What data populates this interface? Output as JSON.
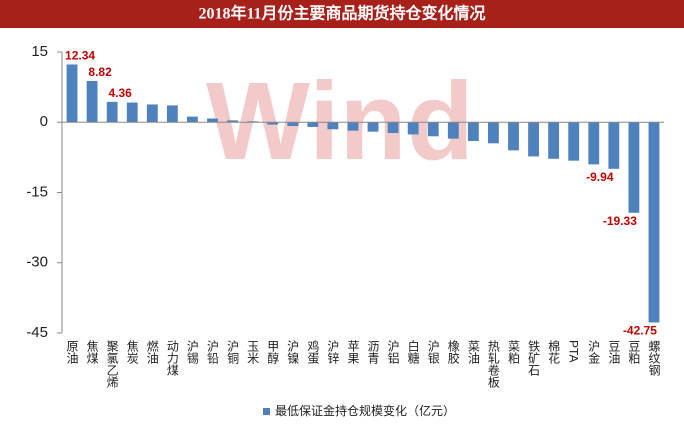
{
  "chart_data": {
    "type": "bar",
    "title": "2018年11月份主要商品期货持仓变化情况",
    "watermark": "Wind",
    "categories": [
      "原油",
      "焦煤",
      "聚氯乙烯",
      "焦炭",
      "燃油",
      "动力煤",
      "沪锡",
      "沪铅",
      "沪铜",
      "玉米",
      "甲醇",
      "沪镍",
      "鸡蛋",
      "沪锌",
      "苹果",
      "沥青",
      "沪铝",
      "白糖",
      "沪银",
      "橡胶",
      "菜油",
      "热轧卷板",
      "菜粕",
      "铁矿石",
      "棉花",
      "PTA",
      "沪金",
      "豆油",
      "豆粕",
      "螺纹钢"
    ],
    "series": [
      {
        "name": "最低保证金持仓规模变化（亿元）",
        "color": "#4f81bd",
        "values": [
          12.34,
          8.82,
          4.36,
          4.2,
          3.8,
          3.6,
          1.2,
          0.8,
          0.4,
          0.2,
          -0.5,
          -0.8,
          -1.0,
          -1.5,
          -1.8,
          -2.0,
          -2.3,
          -2.6,
          -3.0,
          -3.5,
          -4.0,
          -4.5,
          -6.0,
          -7.3,
          -7.8,
          -8.2,
          -9.0,
          -9.94,
          -19.33,
          -42.75
        ],
        "value_labels": [
          "12.34",
          "8.82",
          "4.36",
          null,
          null,
          null,
          null,
          null,
          null,
          null,
          null,
          null,
          null,
          null,
          null,
          null,
          null,
          null,
          null,
          null,
          null,
          null,
          null,
          null,
          null,
          null,
          null,
          "-9.94",
          "-19.33",
          "-42.75"
        ]
      }
    ],
    "ylim": [
      -45,
      15
    ],
    "yticks": [
      15,
      0,
      -15,
      -30,
      -45
    ],
    "grid": false,
    "legend": "bottom"
  }
}
